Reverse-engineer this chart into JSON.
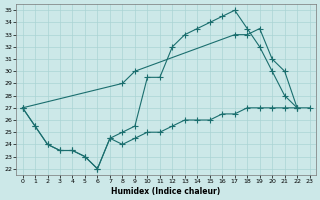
{
  "xlabel": "Humidex (Indice chaleur)",
  "bg_color": "#cce8e8",
  "line_color": "#1a6e6e",
  "grid_color": "#aad4d4",
  "xlim": [
    -0.5,
    23.5
  ],
  "ylim": [
    21.5,
    35.5
  ],
  "xticks": [
    0,
    1,
    2,
    3,
    4,
    5,
    6,
    7,
    8,
    9,
    10,
    11,
    12,
    13,
    14,
    15,
    16,
    17,
    18,
    19,
    20,
    21,
    22,
    23
  ],
  "yticks": [
    22,
    23,
    24,
    25,
    26,
    27,
    28,
    29,
    30,
    31,
    32,
    33,
    34,
    35
  ],
  "line1_y": [
    27,
    25.5,
    24,
    23.5,
    23.5,
    23,
    22,
    24.5,
    25,
    25.5,
    29.5,
    29.5,
    32,
    33,
    33.5,
    34,
    34.5,
    35,
    33.5,
    32,
    30,
    28,
    27,
    null
  ],
  "line2_y": [
    27,
    null,
    null,
    null,
    null,
    null,
    null,
    null,
    29,
    30,
    null,
    null,
    null,
    null,
    null,
    null,
    null,
    33,
    33,
    33.5,
    31,
    30,
    27,
    null
  ],
  "line3_y": [
    27,
    25.5,
    24,
    23.5,
    23.5,
    23,
    22,
    24.5,
    24,
    24.5,
    25,
    25,
    25.5,
    26,
    26,
    26,
    26.5,
    26.5,
    27,
    27,
    27,
    27,
    27,
    27
  ]
}
